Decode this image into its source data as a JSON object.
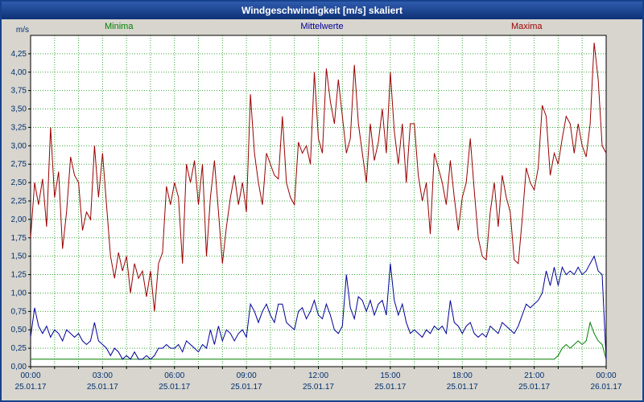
{
  "window": {
    "title": "Windgeschwindigkeit [m/s] skaliert"
  },
  "chart_data": {
    "type": "line",
    "title": "Windgeschwindigkeit [m/s] skaliert",
    "ylabel": "m/s",
    "xlabel": "",
    "ylim": [
      0,
      4.5
    ],
    "ytick_step": 0.25,
    "ytick_labels": [
      "0,00",
      "0,25",
      "0,50",
      "0,75",
      "1,00",
      "1,25",
      "1,50",
      "1,75",
      "2,00",
      "2,25",
      "2,50",
      "2,75",
      "3,00",
      "3,25",
      "3,50",
      "3,75",
      "4,00",
      "4,25"
    ],
    "x_start_hour": 0,
    "x_end_hour": 24,
    "xtick_interval_hours": 3,
    "points_per_hour": 6,
    "grid": {
      "color": "#3aa73a",
      "style": "dotted",
      "x_interval_hours": 1
    },
    "axis_text_color": "#003070",
    "xtick_labels": [
      {
        "time": "00:00",
        "date": "25.01.17"
      },
      {
        "time": "03:00",
        "date": "25.01.17"
      },
      {
        "time": "06:00",
        "date": "25.01.17"
      },
      {
        "time": "09:00",
        "date": "25.01.17"
      },
      {
        "time": "12:00",
        "date": "25.01.17"
      },
      {
        "time": "15:00",
        "date": "25.01.17"
      },
      {
        "time": "18:00",
        "date": "25.01.17"
      },
      {
        "time": "21:00",
        "date": "25.01.17"
      },
      {
        "time": "00:00",
        "date": "26.01.17"
      }
    ],
    "series": [
      {
        "name": "Minima",
        "color": "#008000",
        "values": [
          0.1,
          0.1,
          0.1,
          0.1,
          0.1,
          0.1,
          0.1,
          0.1,
          0.1,
          0.1,
          0.1,
          0.1,
          0.1,
          0.1,
          0.1,
          0.1,
          0.1,
          0.1,
          0.1,
          0.1,
          0.1,
          0.1,
          0.1,
          0.1,
          0.1,
          0.1,
          0.1,
          0.1,
          0.1,
          0.1,
          0.1,
          0.1,
          0.1,
          0.1,
          0.1,
          0.1,
          0.1,
          0.1,
          0.1,
          0.1,
          0.1,
          0.1,
          0.1,
          0.1,
          0.1,
          0.1,
          0.1,
          0.1,
          0.1,
          0.1,
          0.1,
          0.1,
          0.1,
          0.1,
          0.1,
          0.1,
          0.1,
          0.1,
          0.1,
          0.1,
          0.1,
          0.1,
          0.1,
          0.1,
          0.1,
          0.1,
          0.1,
          0.1,
          0.1,
          0.1,
          0.1,
          0.1,
          0.1,
          0.1,
          0.1,
          0.1,
          0.1,
          0.1,
          0.1,
          0.1,
          0.1,
          0.1,
          0.1,
          0.1,
          0.1,
          0.1,
          0.1,
          0.1,
          0.1,
          0.1,
          0.1,
          0.1,
          0.1,
          0.1,
          0.1,
          0.1,
          0.1,
          0.1,
          0.1,
          0.1,
          0.1,
          0.1,
          0.1,
          0.1,
          0.1,
          0.1,
          0.1,
          0.1,
          0.1,
          0.1,
          0.1,
          0.1,
          0.1,
          0.1,
          0.1,
          0.1,
          0.1,
          0.1,
          0.1,
          0.1,
          0.1,
          0.1,
          0.1,
          0.1,
          0.1,
          0.1,
          0.1,
          0.1,
          0.1,
          0.1,
          0.1,
          0.1,
          0.15,
          0.25,
          0.3,
          0.25,
          0.3,
          0.35,
          0.3,
          0.35,
          0.6,
          0.45,
          0.35,
          0.3,
          0.1
        ]
      },
      {
        "name": "Mittelwerte",
        "color": "#000099",
        "values": [
          0.4,
          0.8,
          0.55,
          0.45,
          0.55,
          0.4,
          0.5,
          0.45,
          0.35,
          0.5,
          0.45,
          0.4,
          0.45,
          0.35,
          0.3,
          0.35,
          0.6,
          0.35,
          0.3,
          0.25,
          0.15,
          0.25,
          0.2,
          0.1,
          0.15,
          0.1,
          0.2,
          0.1,
          0.1,
          0.15,
          0.1,
          0.15,
          0.25,
          0.25,
          0.3,
          0.25,
          0.25,
          0.3,
          0.2,
          0.35,
          0.3,
          0.25,
          0.2,
          0.3,
          0.25,
          0.5,
          0.3,
          0.55,
          0.35,
          0.5,
          0.45,
          0.35,
          0.45,
          0.5,
          0.4,
          0.85,
          0.75,
          0.6,
          0.75,
          0.85,
          0.7,
          0.6,
          0.85,
          0.85,
          0.6,
          0.55,
          0.5,
          0.75,
          0.8,
          0.65,
          0.75,
          0.9,
          0.7,
          0.65,
          0.85,
          0.7,
          0.5,
          0.45,
          0.55,
          1.25,
          0.8,
          0.65,
          0.95,
          0.9,
          0.75,
          0.9,
          0.7,
          0.85,
          0.9,
          0.7,
          1.4,
          0.9,
          0.7,
          0.85,
          0.6,
          0.45,
          0.5,
          0.45,
          0.4,
          0.5,
          0.45,
          0.55,
          0.5,
          0.55,
          0.45,
          0.9,
          0.6,
          0.55,
          0.45,
          0.55,
          0.6,
          0.45,
          0.4,
          0.45,
          0.4,
          0.55,
          0.5,
          0.45,
          0.6,
          0.55,
          0.5,
          0.45,
          0.55,
          0.7,
          0.85,
          0.8,
          0.85,
          0.9,
          1.0,
          1.3,
          1.1,
          1.35,
          1.1,
          1.35,
          1.25,
          1.3,
          1.25,
          1.35,
          1.25,
          1.3,
          1.4,
          1.5,
          1.3,
          1.25,
          0.1
        ]
      },
      {
        "name": "Maxima",
        "color": "#990000",
        "values": [
          1.75,
          2.5,
          2.2,
          2.55,
          1.9,
          3.25,
          2.3,
          2.65,
          1.6,
          2.1,
          2.85,
          2.6,
          2.5,
          1.85,
          2.1,
          2.0,
          3.0,
          2.3,
          2.9,
          2.2,
          1.5,
          1.2,
          1.55,
          1.3,
          1.5,
          1.0,
          1.4,
          1.2,
          1.3,
          0.95,
          1.3,
          0.75,
          1.4,
          1.55,
          2.45,
          2.2,
          2.5,
          2.3,
          1.4,
          2.75,
          2.5,
          2.8,
          2.2,
          2.75,
          1.5,
          2.3,
          2.8,
          2.1,
          1.4,
          1.9,
          2.3,
          2.6,
          2.2,
          2.5,
          2.1,
          3.7,
          2.9,
          2.5,
          2.2,
          2.9,
          2.75,
          2.6,
          2.55,
          3.4,
          2.5,
          2.3,
          2.2,
          3.05,
          2.9,
          3.0,
          2.75,
          4.0,
          3.1,
          2.9,
          4.05,
          3.6,
          3.3,
          3.9,
          3.4,
          2.9,
          3.1,
          4.1,
          3.3,
          2.9,
          2.5,
          3.3,
          2.8,
          3.05,
          3.5,
          2.9,
          4.0,
          3.2,
          2.75,
          3.3,
          2.5,
          3.3,
          3.3,
          2.6,
          2.25,
          2.5,
          1.8,
          2.9,
          2.7,
          2.5,
          2.2,
          2.8,
          2.3,
          1.85,
          2.3,
          2.5,
          3.1,
          2.4,
          1.75,
          1.5,
          1.45,
          2.1,
          2.5,
          1.9,
          2.6,
          2.3,
          2.1,
          1.45,
          1.4,
          2.0,
          2.7,
          2.5,
          2.4,
          2.7,
          3.55,
          3.4,
          2.6,
          2.9,
          2.75,
          3.1,
          3.4,
          3.3,
          2.9,
          3.3,
          3.0,
          2.85,
          3.3,
          4.4,
          3.9,
          3.0,
          2.9
        ]
      }
    ]
  }
}
